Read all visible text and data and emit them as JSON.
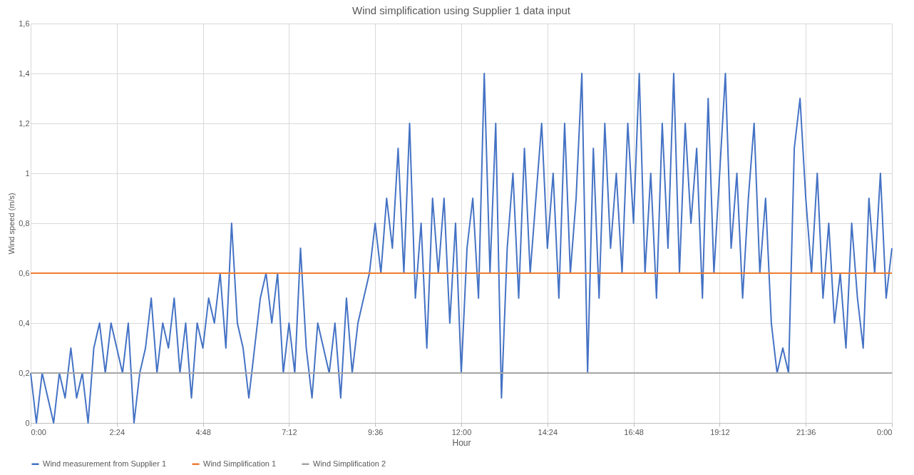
{
  "chart_data": {
    "type": "line",
    "title": "Wind simplification using Supplier 1 data input",
    "xlabel": "Hour",
    "ylabel": "Wind speed (m/s)",
    "xlim": [
      0,
      24
    ],
    "xticks": [
      {
        "value": 0,
        "label": "0:00"
      },
      {
        "value": 2.4,
        "label": "2:24"
      },
      {
        "value": 4.8,
        "label": "4:48"
      },
      {
        "value": 7.2,
        "label": "7:12"
      },
      {
        "value": 9.6,
        "label": "9:36"
      },
      {
        "value": 12,
        "label": "12:00"
      },
      {
        "value": 14.4,
        "label": "14:24"
      },
      {
        "value": 16.8,
        "label": "16:48"
      },
      {
        "value": 19.2,
        "label": "19:12"
      },
      {
        "value": 21.6,
        "label": "21:36"
      },
      {
        "value": 24,
        "label": "0:00"
      }
    ],
    "ylim": [
      0,
      1.6
    ],
    "yticks": [
      0,
      {
        "value": 0.2,
        "label": "0,2"
      },
      {
        "value": 0.4,
        "label": "0,4"
      },
      {
        "value": 0.6,
        "label": "0,6"
      },
      {
        "value": 0.8,
        "label": "0,8"
      },
      1,
      {
        "value": 1.2,
        "label": "1,2"
      },
      {
        "value": 1.4,
        "label": "1,4"
      },
      {
        "value": 1.6,
        "label": "1,6"
      }
    ],
    "grid": true,
    "legend": "bottom",
    "marker": "none",
    "line_style": "solid",
    "x": [
      0,
      0.16,
      0.32,
      0.48,
      0.64,
      0.8,
      0.96,
      1.12,
      1.28,
      1.44,
      1.6,
      1.76,
      1.92,
      2.08,
      2.24,
      2.4,
      2.56,
      2.72,
      2.88,
      3.04,
      3.2,
      3.36,
      3.52,
      3.68,
      3.84,
      4,
      4.16,
      4.32,
      4.48,
      4.64,
      4.8,
      4.96,
      5.12,
      5.28,
      5.44,
      5.6,
      5.76,
      5.92,
      6.08,
      6.24,
      6.4,
      6.56,
      6.72,
      6.88,
      7.04,
      7.2,
      7.36,
      7.52,
      7.68,
      7.84,
      8,
      8.16,
      8.32,
      8.48,
      8.64,
      8.8,
      8.96,
      9.12,
      9.28,
      9.44,
      9.6,
      9.76,
      9.92,
      10.08,
      10.24,
      10.4,
      10.56,
      10.72,
      10.88,
      11.04,
      11.2,
      11.36,
      11.52,
      11.68,
      11.84,
      12,
      12.16,
      12.32,
      12.48,
      12.64,
      12.8,
      12.96,
      13.12,
      13.28,
      13.44,
      13.6,
      13.76,
      13.92,
      14.08,
      14.24,
      14.4,
      14.56,
      14.72,
      14.88,
      15.04,
      15.2,
      15.36,
      15.52,
      15.68,
      15.84,
      16,
      16.16,
      16.32,
      16.48,
      16.64,
      16.8,
      16.96,
      17.12,
      17.28,
      17.44,
      17.6,
      17.76,
      17.92,
      18.08,
      18.24,
      18.4,
      18.56,
      18.72,
      18.88,
      19.04,
      19.2,
      19.36,
      19.52,
      19.68,
      19.84,
      20,
      20.16,
      20.32,
      20.48,
      20.64,
      20.8,
      20.96,
      21.12,
      21.28,
      21.44,
      21.6,
      21.76,
      21.92,
      22.08,
      22.24,
      22.4,
      22.56,
      22.72,
      22.88,
      23.04,
      23.2,
      23.36,
      23.52,
      23.68,
      23.84,
      24
    ],
    "series": [
      {
        "name": "Wind measurement from Supplier 1",
        "color": "#4472c4",
        "values": [
          0.2,
          0,
          0.2,
          0.1,
          0,
          0.2,
          0.1,
          0.3,
          0.1,
          0.2,
          0,
          0.3,
          0.4,
          0.2,
          0.4,
          0.3,
          0.2,
          0.4,
          0,
          0.2,
          0.3,
          0.5,
          0.2,
          0.4,
          0.3,
          0.5,
          0.2,
          0.4,
          0.1,
          0.4,
          0.3,
          0.5,
          0.4,
          0.6,
          0.3,
          0.8,
          0.4,
          0.3,
          0.1,
          0.3,
          0.5,
          0.6,
          0.4,
          0.6,
          0.2,
          0.4,
          0.2,
          0.7,
          0.3,
          0.1,
          0.4,
          0.3,
          0.2,
          0.4,
          0.1,
          0.5,
          0.2,
          0.4,
          0.5,
          0.6,
          0.8,
          0.6,
          0.9,
          0.7,
          1.1,
          0.6,
          1.2,
          0.5,
          0.8,
          0.3,
          0.9,
          0.6,
          0.9,
          0.4,
          0.8,
          0.2,
          0.7,
          0.9,
          0.5,
          1.4,
          0.6,
          1.2,
          0.1,
          0.7,
          1.0,
          0.5,
          1.1,
          0.6,
          0.9,
          1.2,
          0.7,
          1.0,
          0.5,
          1.2,
          0.6,
          0.9,
          1.4,
          0.2,
          1.1,
          0.5,
          1.2,
          0.7,
          1.0,
          0.6,
          1.2,
          0.8,
          1.4,
          0.6,
          1.0,
          0.5,
          1.2,
          0.7,
          1.4,
          0.6,
          1.2,
          0.8,
          1.1,
          0.5,
          1.3,
          0.6,
          1.0,
          1.4,
          0.7,
          1.0,
          0.5,
          0.9,
          1.2,
          0.6,
          0.9,
          0.4,
          0.2,
          0.3,
          0.2,
          1.1,
          1.3,
          0.9,
          0.6,
          1.0,
          0.5,
          0.8,
          0.4,
          0.6,
          0.3,
          0.8,
          0.5,
          0.3,
          0.9,
          0.6,
          1.0,
          0.5,
          0.7
        ]
      },
      {
        "name": "Wind Simplification 1",
        "color": "#ed7d31",
        "values": [
          0.6,
          0.6,
          0.6,
          0.6,
          0.6,
          0.6,
          0.6,
          0.6,
          0.6,
          0.6,
          0.6,
          0.6,
          0.6,
          0.6,
          0.6,
          0.6,
          0.6,
          0.6,
          0.6,
          0.6,
          0.6,
          0.6,
          0.6,
          0.6,
          0.6,
          0.6,
          0.6,
          0.6,
          0.6,
          0.6,
          0.6,
          0.6,
          0.6,
          0.6,
          0.6,
          0.6,
          0.6,
          0.6,
          0.6,
          0.6,
          0.6,
          0.6,
          0.6,
          0.6,
          0.6,
          0.6,
          0.6,
          0.6,
          0.6,
          0.6,
          0.6,
          0.6,
          0.6,
          0.6,
          0.6,
          0.6,
          0.6,
          0.6,
          0.6,
          0.6,
          0.6,
          0.6,
          0.6,
          0.6,
          0.6,
          0.6,
          0.6,
          0.6,
          0.6,
          0.6,
          0.6,
          0.6,
          0.6,
          0.6,
          0.6,
          0.6,
          0.6,
          0.6,
          0.6,
          0.6,
          0.6,
          0.6,
          0.6,
          0.6,
          0.6,
          0.6,
          0.6,
          0.6,
          0.6,
          0.6,
          0.6,
          0.6,
          0.6,
          0.6,
          0.6,
          0.6,
          0.6,
          0.6,
          0.6,
          0.6,
          0.6,
          0.6,
          0.6,
          0.6,
          0.6,
          0.6,
          0.6,
          0.6,
          0.6,
          0.6,
          0.6,
          0.6,
          0.6,
          0.6,
          0.6,
          0.6,
          0.6,
          0.6,
          0.6,
          0.6,
          0.6,
          0.6,
          0.6,
          0.6,
          0.6,
          0.6,
          0.6,
          0.6,
          0.6,
          0.6,
          0.6,
          0.6,
          0.6,
          0.6,
          0.6,
          0.6,
          0.6,
          0.6,
          0.6,
          0.6,
          0.6,
          0.6,
          0.6,
          0.6,
          0.6,
          0.6,
          0.6,
          0.6,
          0.6,
          0.6,
          0.6
        ]
      },
      {
        "name": "Wind Simplification 2",
        "color": "#a5a5a5",
        "values": [
          0.2,
          0.2,
          0.2,
          0.2,
          0.2,
          0.2,
          0.2,
          0.2,
          0.2,
          0.2,
          0.2,
          0.2,
          0.2,
          0.2,
          0.2,
          0.2,
          0.2,
          0.2,
          0.2,
          0.2,
          0.2,
          0.2,
          0.2,
          0.2,
          0.2,
          0.2,
          0.2,
          0.2,
          0.2,
          0.2,
          0.2,
          0.2,
          0.2,
          0.2,
          0.2,
          0.2,
          0.2,
          0.2,
          0.2,
          0.2,
          0.2,
          0.2,
          0.2,
          0.2,
          0.2,
          0.2,
          0.2,
          0.2,
          0.2,
          0.2,
          0.2,
          0.2,
          0.2,
          0.2,
          0.2,
          0.2,
          0.2,
          0.2,
          0.2,
          0.2,
          0.2,
          0.2,
          0.2,
          0.2,
          0.2,
          0.2,
          0.2,
          0.2,
          0.2,
          0.2,
          0.2,
          0.2,
          0.2,
          0.2,
          0.2,
          0.2,
          0.2,
          0.2,
          0.2,
          0.2,
          0.2,
          0.2,
          0.2,
          0.2,
          0.2,
          0.2,
          0.2,
          0.2,
          0.2,
          0.2,
          0.2,
          0.2,
          0.2,
          0.2,
          0.2,
          0.2,
          0.2,
          0.2,
          0.2,
          0.2,
          0.2,
          0.2,
          0.2,
          0.2,
          0.2,
          0.2,
          0.2,
          0.2,
          0.2,
          0.2,
          0.2,
          0.2,
          0.2,
          0.2,
          0.2,
          0.2,
          0.2,
          0.2,
          0.2,
          0.2,
          0.2,
          0.2,
          0.2,
          0.2,
          0.2,
          0.2,
          0.2,
          0.2,
          0.2,
          0.2,
          0.2,
          0.2,
          0.2,
          0.2,
          0.2,
          0.2,
          0.2,
          0.2,
          0.2,
          0.2,
          0.2,
          0.2,
          0.2,
          0.2,
          0.2,
          0.2,
          0.2,
          0.2,
          0.2,
          0.2,
          0.2
        ]
      }
    ]
  }
}
